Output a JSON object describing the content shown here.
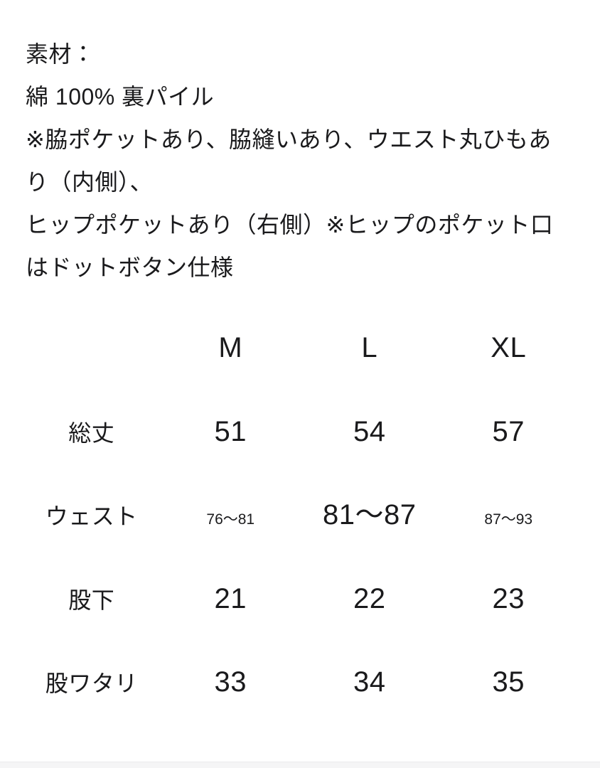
{
  "page": {
    "background_color": "#ffffff",
    "text_color": "#1a1a1c",
    "divider_color": "#f5f5f6"
  },
  "description": {
    "label": "素材：",
    "lines": [
      "素材：",
      "綿 100% 裏パイル",
      "※脇ポケットあり、脇縫いあり、ウエスト丸ひもあ",
      "り（内側）、",
      "ヒップポケットあり（右側）※ヒップのポケット口",
      "はドットボタン仕様"
    ]
  },
  "size_table": {
    "columns": [
      "M",
      "L",
      "XL"
    ],
    "rows": [
      {
        "label": "総丈",
        "values": [
          "51",
          "54",
          "57"
        ]
      },
      {
        "label": "ウェスト",
        "values": [
          "76〜81",
          "81〜87",
          "87〜93"
        ]
      },
      {
        "label": "股下",
        "values": [
          "21",
          "22",
          "23"
        ]
      },
      {
        "label": "股ワタリ",
        "values": [
          "33",
          "34",
          "35"
        ]
      }
    ]
  }
}
